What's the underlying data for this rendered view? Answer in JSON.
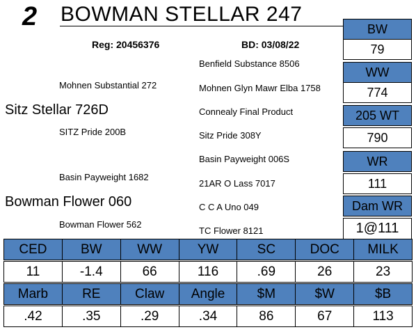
{
  "lot": {
    "number": "2",
    "name": "BOWMAN STELLAR 247",
    "reg": "Reg: 20456376",
    "bd": "BD: 03/08/22"
  },
  "pedigree": {
    "sire": "Sitz Stellar 726D",
    "sire_sire": "Mohnen Substantial 272",
    "sire_dam": "SITZ Pride 200B",
    "sire_sire_sire": "Benfield Substance 8506",
    "sire_sire_dam": "Mohnen Glyn Mawr Elba 1758",
    "sire_dam_sire": "Connealy Final Product",
    "sire_dam_dam": "Sitz Pride 308Y",
    "dam": "Bowman Flower 060",
    "dam_sire": "Basin Payweight 1682",
    "dam_dam": "Bowman Flower 562",
    "dam_sire_sire": "Basin Payweight 006S",
    "dam_sire_dam": "21AR O Lass 7017",
    "dam_dam_sire": "C C A Uno 049",
    "dam_dam_dam": "TC Flower 8121"
  },
  "performance": {
    "bw_label": "BW",
    "bw_value": "79",
    "ww_label": "WW",
    "ww_value": "774",
    "wt205_label": "205 WT",
    "wt205_value": "790",
    "wr_label": "WR",
    "wr_value": "111",
    "damwr_label": "Dam WR",
    "damwr_value": "1@111"
  },
  "epds": {
    "row1_headers": [
      "CED",
      "BW",
      "WW",
      "YW",
      "SC",
      "DOC",
      "MILK"
    ],
    "row1_values": [
      "11",
      "-1.4",
      "66",
      "116",
      ".69",
      "26",
      "23"
    ],
    "row2_headers": [
      "Marb",
      "RE",
      "Claw",
      "Angle",
      "$M",
      "$W",
      "$B"
    ],
    "row2_values": [
      ".42",
      ".35",
      ".29",
      ".34",
      "86",
      "67",
      "113"
    ]
  },
  "colors": {
    "accent_blue": "#4f81bd"
  }
}
